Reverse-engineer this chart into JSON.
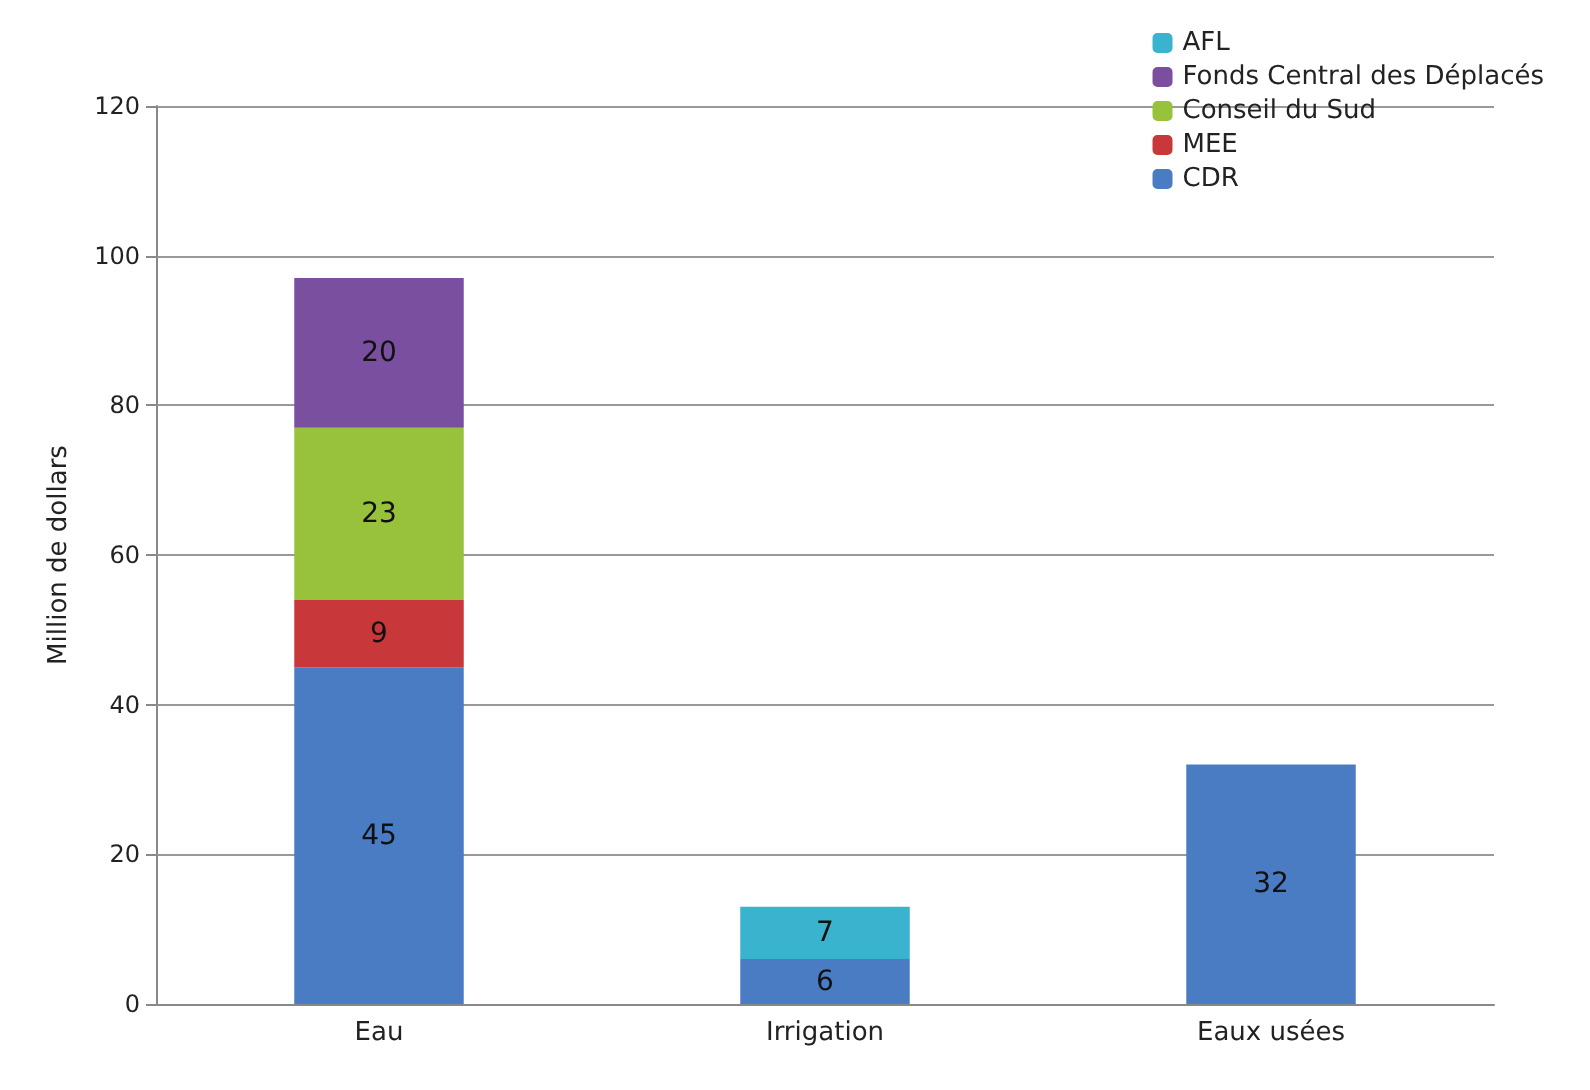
{
  "chart_data": {
    "type": "bar",
    "stacked": true,
    "ylabel": "Million de dollars",
    "categories": [
      "Eau",
      "Irrigation",
      "Eaux usées"
    ],
    "ylim": [
      0,
      120
    ],
    "yticks": [
      0,
      20,
      40,
      60,
      80,
      100,
      120
    ],
    "grid": "y",
    "legend": "top right",
    "data_labels": true,
    "series": [
      {
        "name": "CDR",
        "color": "#4a7cc4",
        "values": [
          45,
          6,
          32
        ]
      },
      {
        "name": "MEE",
        "color": "#c8383a",
        "values": [
          9,
          null,
          null
        ]
      },
      {
        "name": "Conseil du Sud",
        "color": "#98c23c",
        "values": [
          23,
          null,
          null
        ]
      },
      {
        "name": "Fonds Central des Déplacés",
        "color": "#7a4fa0",
        "values": [
          20,
          null,
          null
        ]
      },
      {
        "name": "AFL",
        "color": "#3ab3cf",
        "values": [
          null,
          7,
          null
        ]
      }
    ]
  }
}
